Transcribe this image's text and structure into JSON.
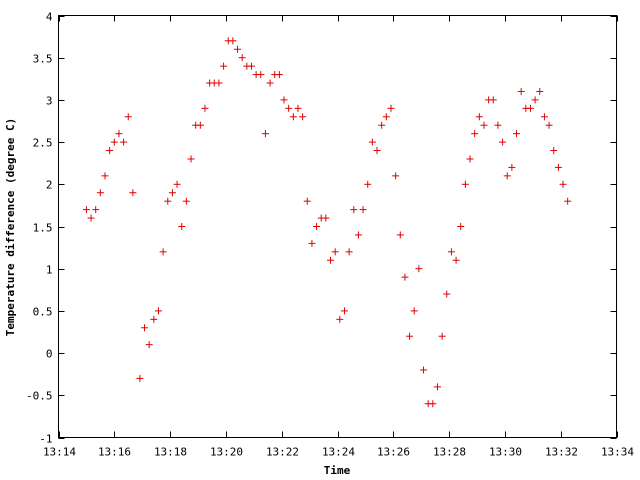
{
  "chart_data": {
    "type": "scatter",
    "title": "",
    "xlabel": "Time",
    "ylabel": "Temperature difference (degree C)",
    "marker": "plus",
    "color": "#e00000",
    "grid": false,
    "xlim": [
      "13:14",
      "13:34"
    ],
    "ylim": [
      -1,
      4
    ],
    "x_ticks": [
      "13:14",
      "13:16",
      "13:18",
      "13:20",
      "13:22",
      "13:24",
      "13:26",
      "13:28",
      "13:30",
      "13:32",
      "13:34"
    ],
    "y_ticks": [
      "-1",
      "-0.5",
      "0",
      "0.5",
      "1",
      "1.5",
      "2",
      "2.5",
      "3",
      "3.5",
      "4"
    ],
    "series": [
      {
        "points": [
          [
            "13:15:00",
            1.7
          ],
          [
            "13:15:10",
            1.6
          ],
          [
            "13:15:20",
            1.7
          ],
          [
            "13:15:30",
            1.9
          ],
          [
            "13:15:40",
            2.1
          ],
          [
            "13:15:50",
            2.4
          ],
          [
            "13:16:00",
            2.5
          ],
          [
            "13:16:10",
            2.6
          ],
          [
            "13:16:20",
            2.5
          ],
          [
            "13:16:30",
            2.8
          ],
          [
            "13:16:40",
            1.9
          ],
          [
            "13:16:55",
            -0.3
          ],
          [
            "13:17:05",
            0.3
          ],
          [
            "13:17:15",
            0.1
          ],
          [
            "13:17:25",
            0.4
          ],
          [
            "13:17:35",
            0.5
          ],
          [
            "13:17:45",
            1.2
          ],
          [
            "13:17:55",
            1.8
          ],
          [
            "13:18:05",
            1.9
          ],
          [
            "13:18:15",
            2.0
          ],
          [
            "13:18:25",
            1.5
          ],
          [
            "13:18:35",
            1.8
          ],
          [
            "13:18:45",
            2.3
          ],
          [
            "13:18:55",
            2.7
          ],
          [
            "13:19:05",
            2.7
          ],
          [
            "13:19:15",
            2.9
          ],
          [
            "13:19:25",
            3.2
          ],
          [
            "13:19:35",
            3.2
          ],
          [
            "13:19:45",
            3.2
          ],
          [
            "13:19:55",
            3.4
          ],
          [
            "13:20:05",
            3.7
          ],
          [
            "13:20:15",
            3.7
          ],
          [
            "13:20:25",
            3.6
          ],
          [
            "13:20:35",
            3.5
          ],
          [
            "13:20:45",
            3.4
          ],
          [
            "13:20:55",
            3.4
          ],
          [
            "13:21:05",
            3.3
          ],
          [
            "13:21:15",
            3.3
          ],
          [
            "13:21:25",
            2.6
          ],
          [
            "13:21:35",
            3.2
          ],
          [
            "13:21:45",
            3.3
          ],
          [
            "13:21:55",
            3.3
          ],
          [
            "13:22:05",
            3.0
          ],
          [
            "13:22:15",
            2.9
          ],
          [
            "13:22:25",
            2.8
          ],
          [
            "13:22:35",
            2.9
          ],
          [
            "13:22:45",
            2.8
          ],
          [
            "13:22:55",
            1.8
          ],
          [
            "13:23:05",
            1.3
          ],
          [
            "13:23:15",
            1.5
          ],
          [
            "13:23:25",
            1.6
          ],
          [
            "13:23:35",
            1.6
          ],
          [
            "13:23:45",
            1.1
          ],
          [
            "13:23:55",
            1.2
          ],
          [
            "13:24:05",
            0.4
          ],
          [
            "13:24:15",
            0.5
          ],
          [
            "13:24:25",
            1.2
          ],
          [
            "13:24:35",
            1.7
          ],
          [
            "13:24:45",
            1.4
          ],
          [
            "13:24:55",
            1.7
          ],
          [
            "13:25:05",
            2.0
          ],
          [
            "13:25:15",
            2.5
          ],
          [
            "13:25:25",
            2.4
          ],
          [
            "13:25:35",
            2.7
          ],
          [
            "13:25:45",
            2.8
          ],
          [
            "13:25:55",
            2.9
          ],
          [
            "13:26:05",
            2.1
          ],
          [
            "13:26:15",
            1.4
          ],
          [
            "13:26:25",
            0.9
          ],
          [
            "13:26:35",
            0.2
          ],
          [
            "13:26:45",
            0.5
          ],
          [
            "13:26:55",
            1.0
          ],
          [
            "13:27:05",
            -0.2
          ],
          [
            "13:27:15",
            -0.6
          ],
          [
            "13:27:25",
            -0.6
          ],
          [
            "13:27:35",
            -0.4
          ],
          [
            "13:27:45",
            0.2
          ],
          [
            "13:27:55",
            0.7
          ],
          [
            "13:28:05",
            1.2
          ],
          [
            "13:28:15",
            1.1
          ],
          [
            "13:28:25",
            1.5
          ],
          [
            "13:28:35",
            2.0
          ],
          [
            "13:28:45",
            2.3
          ],
          [
            "13:28:55",
            2.6
          ],
          [
            "13:29:05",
            2.8
          ],
          [
            "13:29:15",
            2.7
          ],
          [
            "13:29:25",
            3.0
          ],
          [
            "13:29:35",
            3.0
          ],
          [
            "13:29:45",
            2.7
          ],
          [
            "13:29:55",
            2.5
          ],
          [
            "13:30:05",
            2.1
          ],
          [
            "13:30:15",
            2.2
          ],
          [
            "13:30:25",
            2.6
          ],
          [
            "13:30:35",
            3.1
          ],
          [
            "13:30:45",
            2.9
          ],
          [
            "13:30:55",
            2.9
          ],
          [
            "13:31:05",
            3.0
          ],
          [
            "13:31:15",
            3.1
          ],
          [
            "13:31:25",
            2.8
          ],
          [
            "13:31:35",
            2.7
          ],
          [
            "13:31:45",
            2.4
          ],
          [
            "13:31:55",
            2.2
          ],
          [
            "13:32:05",
            2.0
          ],
          [
            "13:32:15",
            1.8
          ]
        ]
      }
    ]
  }
}
